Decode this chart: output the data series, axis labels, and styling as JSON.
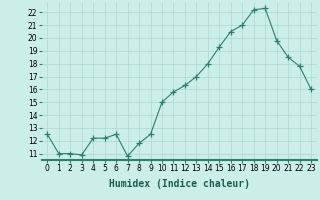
{
  "x": [
    0,
    1,
    2,
    3,
    4,
    5,
    6,
    7,
    8,
    9,
    10,
    11,
    12,
    13,
    14,
    15,
    16,
    17,
    18,
    19,
    20,
    21,
    22,
    23
  ],
  "y": [
    12.5,
    11.0,
    11.0,
    10.9,
    12.2,
    12.2,
    12.5,
    10.8,
    11.8,
    12.5,
    15.0,
    15.8,
    16.3,
    17.0,
    18.0,
    19.3,
    20.5,
    21.0,
    22.2,
    22.3,
    19.8,
    18.5,
    17.8,
    16.0
  ],
  "line_color": "#2e7d6e",
  "marker": "+",
  "marker_size": 4,
  "bg_color": "#cceee8",
  "grid_color": "#aad8d0",
  "xlabel": "Humidex (Indice chaleur)",
  "ylim": [
    10.5,
    22.8
  ],
  "xlim": [
    -0.5,
    23.5
  ],
  "yticks": [
    11,
    12,
    13,
    14,
    15,
    16,
    17,
    18,
    19,
    20,
    21,
    22
  ],
  "xticks": [
    0,
    1,
    2,
    3,
    4,
    5,
    6,
    7,
    8,
    9,
    10,
    11,
    12,
    13,
    14,
    15,
    16,
    17,
    18,
    19,
    20,
    21,
    22,
    23
  ],
  "tick_fontsize": 5.5,
  "label_fontsize": 7,
  "label_fontweight": "bold"
}
